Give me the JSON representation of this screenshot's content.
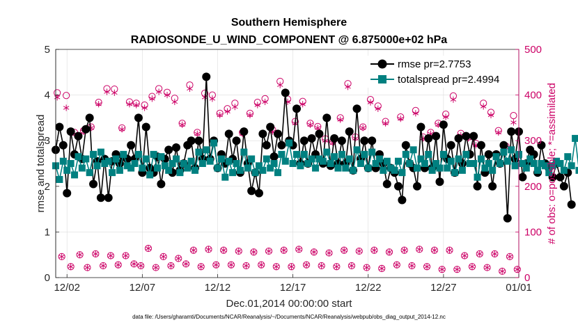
{
  "chart_data": {
    "type": "line",
    "title": "Southern Hemisphere",
    "subtitle": "RADIOSONDE_U_WIND_COMPONENT @ 6.875000e+02 hPa",
    "xlabel": "Dec.01,2014 00:00:00 start",
    "ylabel": "rmse and totalspread",
    "ylabel_right": "# of obs: o=possible; *=assimilated",
    "footnote": "data file: /Users/gharamti/Documents/NCAR/Reanalysis/~/Documents/NCAR/Reanalysis/webpub/obs_diag_output_2014-12.nc",
    "x_tick_labels": [
      "12/02",
      "12/07",
      "12/12",
      "12/17",
      "12/22",
      "12/27",
      "01/01"
    ],
    "x_ticks_days": [
      1,
      6,
      11,
      16,
      21,
      26,
      31
    ],
    "xlim_days": [
      0.25,
      31
    ],
    "ylim": [
      0,
      5
    ],
    "y_ticks": [
      "0",
      "1",
      "2",
      "3",
      "4",
      "5"
    ],
    "ylim_right": [
      0,
      500
    ],
    "y_ticks_right": [
      "0",
      "100",
      "200",
      "300",
      "400",
      "500"
    ],
    "grid": true,
    "legend_position": "top-right",
    "colors": {
      "rmse": "#000000",
      "spread": "#008080",
      "obs": "#cc0066"
    },
    "legend": [
      "rmse pr=2.7753",
      "totalspread pr=2.4994"
    ],
    "series": [
      {
        "name": "rmse pr=2.7753",
        "values": [
          2.8,
          3.3,
          2.9,
          1.85,
          3.2,
          2.7,
          3.1,
          2.6,
          3.25,
          3.5,
          2.05,
          2.55,
          1.75,
          2.6,
          1.75,
          2.55,
          2.7,
          2.5,
          2.65,
          2.6,
          2.9,
          2.6,
          3.5,
          2.3,
          3.3,
          2.4,
          2.3,
          2.65,
          2.05,
          2.6,
          2.8,
          2.3,
          2.85,
          2.35,
          2.5,
          2.9,
          3.0,
          2.4,
          3.0,
          2.6,
          4.4,
          2.6,
          3.0,
          2.4,
          2.7,
          2.5,
          3.15,
          2.6,
          3.0,
          2.3,
          3.2,
          2.5,
          1.9,
          2.3,
          1.85,
          3.15,
          2.9,
          3.3,
          2.65,
          3.15,
          2.9,
          4.05,
          3.0,
          2.9,
          3.7,
          2.5,
          3.0,
          2.5,
          3.05,
          2.7,
          3.15,
          2.5,
          3.5,
          2.45,
          3.05,
          2.5,
          3.0,
          2.5,
          3.2,
          2.35,
          3.7,
          2.6,
          3.0,
          2.4,
          3.0,
          2.4,
          2.7,
          2.5,
          2.05,
          2.4,
          2.3,
          2.0,
          1.7,
          2.9,
          2.5,
          2.4,
          2.0,
          3.3,
          2.4,
          3.05,
          2.4,
          3.1,
          2.1,
          3.35,
          2.6,
          2.9,
          2.3,
          3.05,
          2.5,
          3.1,
          2.7,
          3.1,
          2.0,
          2.9,
          2.3,
          2.7,
          2.0,
          2.7,
          2.5,
          2.9,
          1.3,
          3.2,
          2.6,
          3.2,
          2.2,
          2.5,
          2.8,
          2.7,
          2.3,
          2.9,
          2.5,
          2.4,
          2.2,
          2.5,
          2.2,
          2.0,
          2.3,
          1.6
        ]
      },
      {
        "name": "totalspread pr=2.4994",
        "values": [
          2.45,
          2.15,
          2.55,
          2.35,
          2.5,
          2.25,
          2.65,
          2.4,
          2.6,
          2.3,
          2.7,
          2.45,
          2.75,
          2.5,
          2.55,
          2.3,
          2.6,
          2.35,
          2.7,
          2.45,
          2.4,
          2.5,
          2.7,
          2.4,
          2.6,
          2.25,
          2.7,
          2.4,
          2.65,
          2.45,
          2.35,
          2.5,
          2.6,
          2.3,
          2.5,
          2.4,
          2.55,
          2.35,
          2.75,
          2.5,
          2.8,
          2.55,
          2.95,
          2.4,
          2.6,
          2.2,
          2.55,
          2.3,
          2.5,
          2.35,
          2.75,
          2.4,
          2.6,
          2.3,
          2.45,
          2.35,
          2.6,
          2.4,
          2.5,
          2.3,
          2.7,
          2.55,
          2.95,
          2.5,
          2.7,
          2.45,
          2.7,
          2.5,
          2.6,
          2.4,
          2.6,
          2.55,
          2.75,
          2.5,
          2.65,
          2.4,
          2.7,
          2.4,
          2.6,
          2.35,
          2.8,
          2.5,
          2.7,
          2.4,
          2.75,
          2.5,
          2.6,
          2.35,
          2.55,
          2.4,
          2.35,
          2.55,
          2.3,
          2.7,
          2.5,
          2.8,
          2.4,
          2.6,
          2.5,
          2.7,
          2.35,
          2.5,
          2.4,
          2.7,
          2.4,
          2.55,
          2.3,
          2.6,
          2.35,
          2.7,
          2.5,
          2.5,
          2.2,
          2.6,
          2.4,
          2.5,
          2.35,
          2.65,
          2.5,
          2.75,
          2.55,
          2.8,
          2.45,
          2.7,
          2.5,
          2.4,
          2.6,
          2.5,
          2.35,
          2.5,
          2.45,
          2.3,
          2.45,
          2.55,
          2.5,
          2.35,
          2.65,
          2.45,
          3.05,
          2.35
        ]
      },
      {
        "name": "possible obs (o)",
        "values": [
          406,
          46,
          370,
          24,
          400,
          52,
          353,
          20,
          325,
          26,
          326,
          50,
          368,
          28,
          390,
          52,
          369,
          30,
          415,
          46,
          386,
          26,
          414,
          48,
          378,
          28,
          368,
          50,
          378,
          24,
          357,
          30,
          366,
          52,
          380,
          28,
          377,
          22,
          370,
          68,
          352,
          20,
          383,
          28,
          417,
          44,
          370,
          24,
          324,
          54,
          420,
          22,
          404,
          38,
          367,
          24,
          415,
          40,
          324,
          30,
          356,
          62,
          365,
          24,
          355,
          56,
          402,
          27,
          375,
          60,
          354,
          22,
          370,
          56,
          318,
          24,
          305,
          36,
          364,
          26,
          372,
          58,
          365,
          25,
          385,
          52,
          428,
          26,
          362,
          60,
          360,
          22,
          347,
          60,
          425,
          23,
          350,
          54,
          350,
          25,
          308,
          50,
          394,
          26,
          305,
          58,
          343,
          20,
          288,
          62,
          330,
          22,
          345,
          50,
          378,
          25,
          337,
          56,
          365,
          28,
          356,
          60,
          342,
          20,
          358,
          44,
          332,
          20,
          311,
          62,
          406,
          18,
          376,
          60,
          372,
          22,
          447,
          50,
          372,
          24,
          448,
          50,
          394,
          22,
          440,
          40,
          408,
          16,
          395,
          48,
          376,
          20,
          360,
          60,
          380,
          20,
          372,
          54,
          357,
          14,
          315,
          50,
          382,
          22,
          367,
          42,
          420,
          16,
          455,
          52,
          371,
          16,
          372,
          38,
          396,
          19,
          383,
          46,
          397,
          14,
          368,
          52,
          373,
          20,
          352,
          44,
          306,
          18,
          374,
          50,
          360,
          20,
          348,
          50,
          338,
          18,
          355,
          42,
          310,
          16,
          360,
          48,
          407,
          18,
          310,
          52,
          418,
          15,
          325,
          48,
          338,
          18,
          355,
          50,
          377,
          22,
          398,
          45,
          360,
          21,
          352,
          48,
          345,
          20,
          440,
          40,
          352,
          20,
          368,
          50,
          402,
          18,
          378,
          45,
          330,
          16,
          382,
          50,
          314,
          18,
          385,
          40,
          380,
          14,
          345,
          48,
          381,
          16,
          392,
          42,
          383,
          16,
          362,
          46,
          406,
          20,
          318,
          42,
          312,
          20,
          327,
          45,
          302,
          16,
          384,
          18,
          350,
          14
        ],
        "values_note": "alternating sample pattern for possible-obs counts"
      }
    ],
    "obs_points": {
      "x_days": [
        0.35,
        0.65,
        0.95,
        1.25,
        1.5,
        1.85,
        2.1,
        2.35,
        2.6,
        2.9,
        3.1,
        3.4,
        3.65,
        3.9,
        4.15,
        4.4,
        4.65,
        4.9,
        5.15,
        5.45,
        5.6,
        5.9,
        6.15,
        6.4,
        6.65,
        6.9,
        7.1,
        7.4,
        7.65,
        7.9,
        8.15,
        8.4,
        8.65,
        8.9,
        9.15,
        9.4,
        9.65,
        9.9,
        10.15,
        10.4,
        10.65,
        10.9,
        11.15,
        11.4,
        11.65,
        11.9,
        12.15,
        12.4,
        12.65,
        12.9,
        13.15,
        13.4,
        13.65,
        13.9,
        14.15,
        14.4,
        14.65,
        14.9,
        15.15,
        15.4,
        15.65,
        15.9,
        16.15,
        16.4,
        16.65,
        16.9,
        17.15,
        17.4,
        17.65,
        17.9,
        18.15,
        18.4,
        18.65,
        18.9,
        19.15,
        19.4,
        19.65,
        19.9,
        20.15,
        20.4,
        20.65,
        20.9,
        21.15,
        21.4,
        21.65,
        21.9,
        22.15,
        22.4,
        22.65,
        22.9,
        23.15,
        23.4,
        23.65,
        23.9,
        24.15,
        24.4,
        24.65,
        24.9,
        25.15,
        25.4,
        25.65,
        25.9,
        26.15,
        26.4,
        26.65,
        26.9,
        27.15,
        27.4,
        27.65,
        27.9,
        28.15,
        28.4,
        28.65,
        28.9,
        29.15,
        29.4,
        29.65,
        29.9,
        30.15,
        30.4,
        30.65,
        30.9
      ],
      "possible": [
        405,
        46,
        399,
        24,
        318,
        50,
        322,
        22,
        330,
        52,
        384,
        26,
        414,
        48,
        413,
        28,
        328,
        48,
        385,
        30,
        382,
        26,
        378,
        64,
        397,
        22,
        414,
        46,
        406,
        26,
        393,
        42,
        338,
        30,
        422,
        60,
        318,
        24,
        404,
        62,
        400,
        28,
        360,
        60,
        370,
        28,
        382,
        58,
        318,
        26,
        360,
        56,
        384,
        28,
        392,
        58,
        324,
        24,
        430,
        60,
        391,
        24,
        342,
        62,
        386,
        28,
        338,
        56,
        331,
        26,
        304,
        54,
        298,
        24,
        350,
        60,
        425,
        26,
        308,
        58,
        330,
        22,
        390,
        60,
        376,
        20,
        342,
        56,
        454,
        28,
        352,
        60,
        440,
        26,
        366,
        62,
        308,
        24,
        318,
        60,
        338,
        18,
        358,
        60,
        398,
        18,
        316,
        48,
        308,
        24,
        294,
        52,
        382,
        22,
        362,
        52,
        322,
        14,
        288,
        46,
        355,
        18
      ],
      "assimilated": [
        395,
        46,
        372,
        24,
        315,
        50,
        320,
        22,
        328,
        52,
        380,
        26,
        407,
        48,
        405,
        28,
        325,
        48,
        380,
        30,
        378,
        26,
        372,
        64,
        392,
        22,
        407,
        46,
        400,
        26,
        385,
        42,
        335,
        30,
        414,
        60,
        315,
        24,
        395,
        62,
        392,
        28,
        356,
        60,
        364,
        28,
        374,
        58,
        315,
        26,
        356,
        56,
        378,
        28,
        385,
        58,
        320,
        24,
        422,
        60,
        385,
        24,
        338,
        62,
        380,
        28,
        335,
        56,
        328,
        26,
        300,
        54,
        295,
        24,
        346,
        60,
        418,
        26,
        305,
        58,
        328,
        22,
        384,
        60,
        370,
        20,
        338,
        56,
        446,
        28,
        348,
        60,
        432,
        26,
        360,
        62,
        305,
        24,
        315,
        60,
        335,
        18,
        352,
        60,
        390,
        18,
        312,
        48,
        305,
        24,
        290,
        52,
        375,
        22,
        356,
        52,
        318,
        14,
        285,
        46,
        340,
        18
      ]
    },
    "series_x_days_note": "rmse and totalspread are plotted at 6-hour steps starting at day 0.25"
  }
}
